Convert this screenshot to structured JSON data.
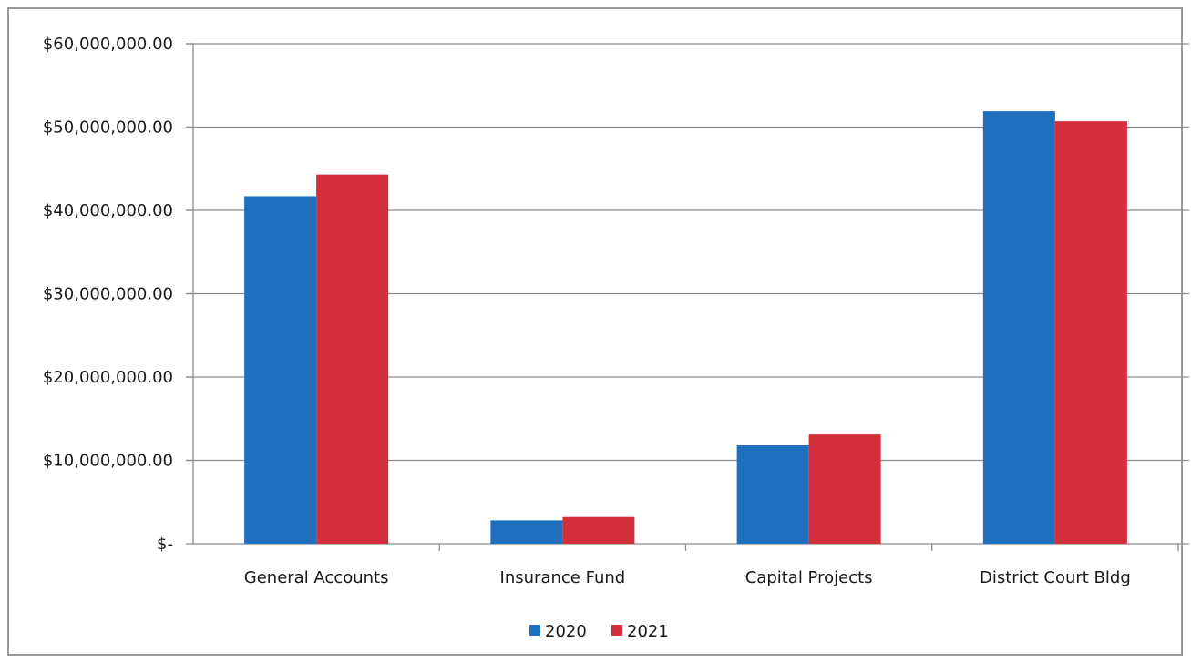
{
  "chart_data": {
    "type": "bar",
    "categories": [
      "General Accounts",
      "Insurance Fund",
      "Capital Projects",
      "District Court Bldg"
    ],
    "series": [
      {
        "name": "2020",
        "color": "#1f6fbf",
        "values": [
          41700000,
          2800000,
          11800000,
          51900000
        ]
      },
      {
        "name": "2021",
        "color": "#d22f3b",
        "values": [
          44300000,
          3200000,
          13100000,
          50700000
        ]
      }
    ],
    "yticks": [
      {
        "value": 0,
        "label": "$-"
      },
      {
        "value": 10000000,
        "label": "$10,000,000.00"
      },
      {
        "value": 20000000,
        "label": "$20,000,000.00"
      },
      {
        "value": 30000000,
        "label": "$30,000,000.00"
      },
      {
        "value": 40000000,
        "label": "$40,000,000.00"
      },
      {
        "value": 50000000,
        "label": "$50,000,000.00"
      },
      {
        "value": 60000000,
        "label": "$60,000,000.00"
      }
    ],
    "ylim": [
      0,
      60000000
    ],
    "grid": true,
    "legend_position": "bottom"
  }
}
